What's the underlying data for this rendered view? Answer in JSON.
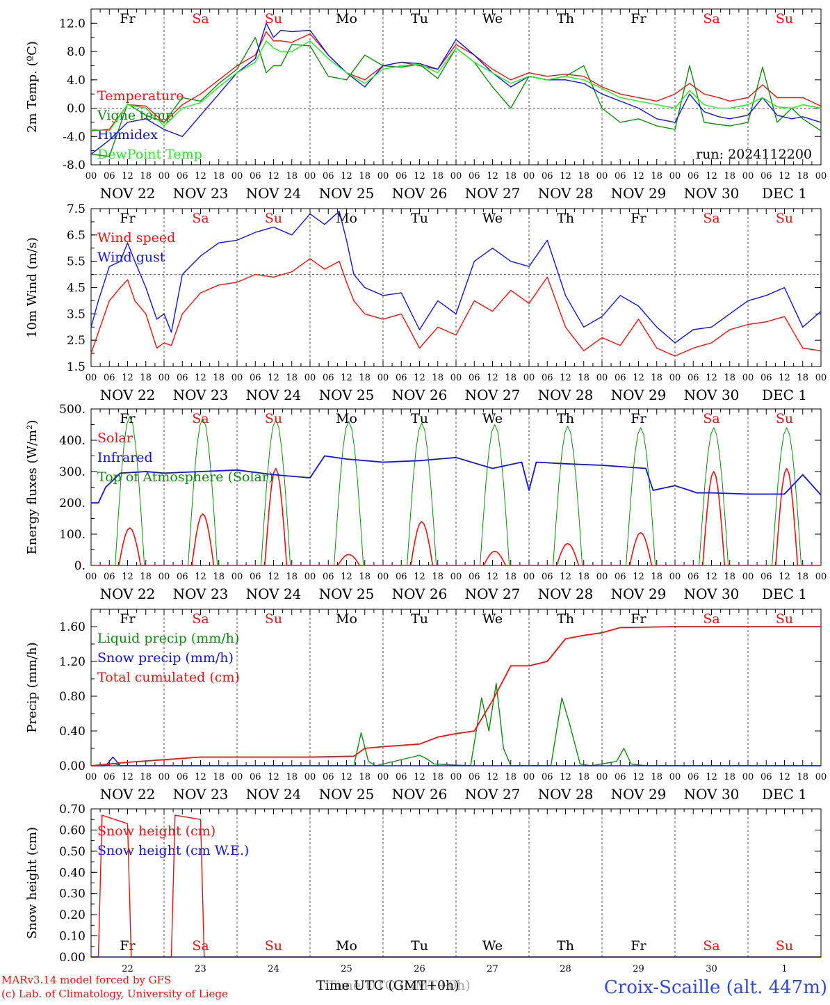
{
  "colors": {
    "red": "#ee1111",
    "green": "#118811",
    "blue": "#1111ee",
    "lightgreen": "#22ee22",
    "sat": "#ee1111",
    "sun": "#ee1111",
    "weekday": "#000000"
  },
  "days": [
    "Fr",
    "Sa",
    "Su",
    "Mo",
    "Tu",
    "We",
    "Th",
    "Fr",
    "Sa",
    "Su"
  ],
  "hour_labels": [
    "00",
    "06",
    "12",
    "18"
  ],
  "date_labels": [
    "NOV 22",
    "NOV 23",
    "NOV 24",
    "NOV 25",
    "NOV 26",
    "NOV 27",
    "NOV 28",
    "NOV 29",
    "NOV 30",
    "DEC  1"
  ],
  "bottom_day_numbers": [
    "22",
    "23",
    "24",
    "25",
    "26",
    "27",
    "28",
    "29",
    "30",
    "1"
  ],
  "footer": {
    "credit1": "MARv3.14 model forced by GFS",
    "credit2": "(c) Lab. of Climatology, University of Liege",
    "xlabel_a": "Time UTC (GMT+0h)",
    "xlabel_b": "Time UTC (GMT+0h)",
    "station": "Croix-Scaille (alt. 447m)"
  },
  "chart_data": [
    {
      "type": "line",
      "ylabel": "2m Temp. (ºC)",
      "ylim": [
        -8,
        14
      ],
      "yticks": [
        "12.0",
        "8.0",
        "4.0",
        "0.0",
        "-4.0",
        "-8.0"
      ],
      "ytick_values": [
        12,
        8,
        4,
        0,
        -4,
        -8
      ],
      "ref_line": 0,
      "annotation": "run: 2024112200",
      "x_days": [
        0,
        0.25,
        0.5,
        0.75,
        1,
        1.25,
        1.5,
        1.75,
        2,
        2.25,
        2.4,
        2.5,
        2.6,
        2.75,
        3,
        3.25,
        3.5,
        3.75,
        4,
        4.25,
        4.5,
        4.75,
        5,
        5.25,
        5.5,
        5.75,
        6,
        6.25,
        6.5,
        6.75,
        7,
        7.25,
        7.5,
        7.75,
        8,
        8.2,
        8.4,
        8.6,
        8.75,
        9,
        9.2,
        9.4,
        9.6,
        9.75,
        10
      ],
      "series": [
        {
          "name": "Temperature",
          "color": "red",
          "values": [
            -3.2,
            -3,
            0.5,
            0.3,
            -2,
            0.5,
            2,
            4,
            6,
            7.5,
            10.8,
            9.5,
            9.5,
            9.3,
            10.5,
            7.5,
            5,
            4,
            6,
            6.5,
            6,
            5.5,
            9,
            7.5,
            5.5,
            4,
            5,
            4.5,
            4.8,
            4.5,
            3,
            2,
            1.5,
            1,
            2,
            3.5,
            2,
            1.5,
            1,
            1.5,
            3.3,
            1.5,
            1.5,
            1.5,
            0.3
          ]
        },
        {
          "name": "Vigne temp",
          "color": "green",
          "values": [
            -6.5,
            -6.8,
            0.6,
            -1,
            -2,
            1.5,
            1,
            3.5,
            5.5,
            10,
            5,
            6,
            6,
            9,
            8.8,
            4.5,
            4,
            7.5,
            6,
            5.8,
            6.2,
            4.2,
            8.5,
            6.5,
            3,
            0,
            4.5,
            4,
            4.5,
            6,
            0,
            -2,
            -1.5,
            -2.5,
            -3,
            6,
            -2,
            -2.3,
            -2.5,
            -2,
            5.8,
            -2,
            0,
            -1.5,
            -3.2
          ]
        },
        {
          "name": "Humidex",
          "color": "blue",
          "values": [
            -6.5,
            -4.5,
            -2,
            -1.5,
            -3,
            -4,
            -1,
            2,
            5,
            7,
            12,
            10,
            11,
            10.8,
            11,
            7.5,
            5,
            3,
            6,
            6.5,
            6.3,
            5.5,
            9.7,
            7.5,
            5,
            3,
            4.5,
            4,
            4,
            3.5,
            2,
            1,
            0,
            -1.5,
            -2,
            2,
            -0.5,
            -1.2,
            -1.5,
            -1,
            1.5,
            -1,
            -1.5,
            -1.2,
            -2
          ]
        },
        {
          "name": "DewPoint Temp",
          "color": "lightgreen",
          "values": [
            -3,
            -3.2,
            0.5,
            0,
            -2.5,
            0,
            0.8,
            3,
            5,
            6.5,
            9.5,
            8.5,
            8,
            8,
            9.5,
            7,
            5,
            3.5,
            5.5,
            6,
            6.2,
            5,
            8.5,
            6.5,
            5,
            3.5,
            4.5,
            4,
            4.5,
            4,
            2.8,
            1.5,
            1,
            0.5,
            0,
            2.5,
            0.5,
            0,
            0,
            0.5,
            1.5,
            0.2,
            0,
            0.5,
            0
          ]
        }
      ]
    },
    {
      "type": "line",
      "ylabel": "10m Wind (m/s)",
      "ylim": [
        1.5,
        7.5
      ],
      "yticks": [
        "7.5",
        "6.5",
        "5.5",
        "4.5",
        "3.5",
        "2.5",
        "1.5"
      ],
      "ytick_values": [
        7.5,
        6.5,
        5.5,
        4.5,
        3.5,
        2.5,
        1.5
      ],
      "ref_line": 5,
      "x_days": [
        0,
        0.1,
        0.25,
        0.4,
        0.5,
        0.6,
        0.75,
        0.9,
        1,
        1.1,
        1.25,
        1.5,
        1.75,
        2,
        2.25,
        2.5,
        2.75,
        3,
        3.2,
        3.4,
        3.5,
        3.6,
        3.75,
        4,
        4.25,
        4.5,
        4.75,
        5,
        5.25,
        5.5,
        5.75,
        6,
        6.25,
        6.5,
        6.75,
        7,
        7.25,
        7.5,
        7.75,
        8,
        8.25,
        8.5,
        8.75,
        9,
        9.25,
        9.5,
        9.75,
        10
      ],
      "series": [
        {
          "name": "Wind speed",
          "color": "red",
          "values": [
            2,
            2.8,
            4,
            4.5,
            4.8,
            4,
            3.5,
            2.2,
            2.4,
            2.3,
            3.5,
            4.3,
            4.6,
            4.7,
            5,
            4.9,
            5.1,
            5.6,
            5.2,
            5.5,
            4.7,
            4,
            3.5,
            3.3,
            3.5,
            2.2,
            3,
            2.7,
            4,
            3.6,
            4.4,
            3.9,
            4.9,
            3,
            2.1,
            2.6,
            2.3,
            3.3,
            2.2,
            1.9,
            2.2,
            2.4,
            2.9,
            3.1,
            3.2,
            3.4,
            2.2,
            2.1
          ]
        },
        {
          "name": "Wind gust",
          "color": "blue",
          "values": [
            3,
            4,
            5.3,
            5.5,
            6.2,
            5.5,
            4.5,
            3.3,
            3.5,
            2.8,
            5,
            5.7,
            6.2,
            6.3,
            6.6,
            6.8,
            6.5,
            7.3,
            6.9,
            7.4,
            6.3,
            5,
            4.5,
            4.2,
            4.3,
            2.9,
            4,
            3.5,
            5.5,
            6,
            5.5,
            5.3,
            6.3,
            4.2,
            3,
            3.4,
            4.2,
            3.8,
            3,
            2.4,
            2.9,
            3.0,
            3.5,
            4.0,
            4.2,
            4.5,
            3,
            3.6
          ]
        }
      ]
    },
    {
      "type": "line",
      "ylabel": "Energy fluxes (W/m²)",
      "ylim": [
        0,
        500
      ],
      "yticks": [
        "500.",
        "400.",
        "300.",
        "200.",
        "100.",
        "0."
      ],
      "ytick_values": [
        500,
        400,
        300,
        200,
        100,
        0
      ],
      "ref_line": null,
      "solar_peaks": [
        120,
        165,
        310,
        35,
        140,
        45,
        70,
        105,
        300,
        310
      ],
      "toa_peaks": [
        475,
        470,
        465,
        460,
        455,
        450,
        445,
        440,
        440,
        440
      ],
      "series": [
        {
          "name": "Solar",
          "color": "red"
        },
        {
          "name": "Infrared",
          "color": "blue",
          "x_days": [
            0,
            0.1,
            0.2,
            0.4,
            0.75,
            1,
            1.5,
            2,
            2.5,
            3,
            3.2,
            3.5,
            4,
            4.5,
            5,
            5.5,
            5.9,
            6,
            6.1,
            6.5,
            7,
            7.6,
            7.7,
            8,
            8.2,
            8.3,
            8.5,
            9,
            9.5,
            9.75,
            10
          ],
          "values": [
            200,
            200,
            250,
            295,
            300,
            295,
            300,
            305,
            290,
            280,
            350,
            340,
            330,
            335,
            345,
            310,
            330,
            240,
            330,
            325,
            320,
            310,
            240,
            255,
            240,
            232,
            232,
            228,
            228,
            290,
            225
          ]
        },
        {
          "name": "Top of Atmosphere (Solar)",
          "color": "green"
        }
      ]
    },
    {
      "type": "line",
      "ylabel": "Precip (mm/h)",
      "ylim": [
        0,
        1.8
      ],
      "yticks": [
        "1.60",
        "1.20",
        "0.80",
        "0.40",
        "0.00"
      ],
      "ytick_values": [
        1.6,
        1.2,
        0.8,
        0.4,
        0
      ],
      "ref_line": null,
      "series": [
        {
          "name": "Liquid precip (mm/h)",
          "color": "green",
          "x_days": [
            0,
            0.2,
            0.3,
            0.4,
            3.6,
            3.7,
            3.8,
            3.9,
            4.4,
            4.5,
            4.6,
            4.7,
            5.2,
            5.35,
            5.45,
            5.55,
            5.65,
            5.75,
            5.85,
            6.3,
            6.45,
            6.55,
            6.7,
            6.85,
            7.2,
            7.3,
            7.4,
            7.6,
            10
          ],
          "values": [
            0,
            0,
            0.03,
            0,
            0,
            0.38,
            0.05,
            0,
            0.1,
            0.12,
            0.08,
            0.02,
            0,
            0.78,
            0.4,
            0.95,
            0.2,
            0,
            0,
            0,
            0.78,
            0.5,
            0.02,
            0,
            0.05,
            0.2,
            0.02,
            0,
            0
          ]
        },
        {
          "name": "Snow precip (mm/h)",
          "color": "blue",
          "x_days": [
            0,
            0.2,
            0.3,
            0.4,
            10
          ],
          "values": [
            0,
            0,
            0.1,
            0,
            0
          ]
        },
        {
          "name": "Total cumulated (cm)",
          "color": "red",
          "x_days": [
            0,
            0.5,
            1,
            1.5,
            2,
            3,
            3.6,
            3.75,
            4,
            4.5,
            4.75,
            5,
            5.25,
            5.5,
            5.75,
            6,
            6.25,
            6.5,
            6.75,
            7,
            7.25,
            8,
            10
          ],
          "values": [
            0,
            0.04,
            0.07,
            0.1,
            0.1,
            0.1,
            0.11,
            0.2,
            0.22,
            0.25,
            0.33,
            0.37,
            0.4,
            0.75,
            1.15,
            1.15,
            1.2,
            1.46,
            1.5,
            1.53,
            1.59,
            1.6,
            1.6
          ]
        }
      ]
    },
    {
      "type": "line",
      "ylabel": "Snow height (cm)",
      "ylim": [
        0,
        0.7
      ],
      "yticks": [
        "0.70",
        "0.60",
        "0.50",
        "0.40",
        "0.30",
        "0.20",
        "0.10",
        "0.00"
      ],
      "ytick_values": [
        0.7,
        0.6,
        0.5,
        0.4,
        0.3,
        0.2,
        0.1,
        0
      ],
      "ref_line": null,
      "series": [
        {
          "name": "Snow height (cm)",
          "color": "red",
          "x_days": [
            0,
            0.1,
            0.15,
            0.5,
            0.55,
            1.1,
            1.15,
            1.5,
            1.55,
            10
          ],
          "values": [
            0,
            0,
            0.67,
            0.63,
            0,
            0,
            0.67,
            0.65,
            0,
            0
          ]
        },
        {
          "name": "Snow height (cm W.E.)",
          "color": "blue",
          "x_days": [
            0,
            10
          ],
          "values": [
            0,
            0
          ]
        }
      ]
    }
  ]
}
